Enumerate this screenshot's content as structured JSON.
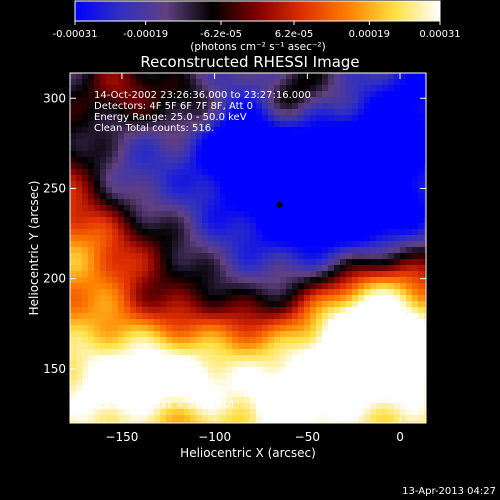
{
  "colorbar": {
    "tick_labels": [
      "-0.00031",
      "-0.00019",
      "-6.2e-05",
      "6.2e-05",
      "0.00019",
      "0.00031"
    ],
    "tick_values": [
      -0.00031,
      -0.00019,
      -6.2e-05,
      6.2e-05,
      0.00019,
      0.00031
    ],
    "range": [
      -0.00031,
      0.00031
    ],
    "unit_label": "(photons cm⁻² s⁻¹ asec⁻²)",
    "colors": [
      "#0000ff",
      "#3030c0",
      "#604080",
      "#000000",
      "#800000",
      "#e03000",
      "#ff8000",
      "#ffe040",
      "#ffffff"
    ]
  },
  "chart_data": {
    "type": "heatmap",
    "title": "Reconstructed RHESSI Image",
    "xlabel": "Heliocentric X (arcsec)",
    "ylabel": "Heliocentric Y (arcsec)",
    "xlim": [
      -178,
      14
    ],
    "ylim": [
      120,
      314
    ],
    "x_ticks": [
      -150,
      -100,
      -50,
      0
    ],
    "y_ticks": [
      150,
      200,
      250,
      300
    ],
    "x_tick_labels": [
      "−150",
      "−100",
      "−50",
      "0"
    ],
    "y_tick_labels": [
      "150",
      "200",
      "250",
      "300"
    ],
    "annotations": [
      "14-Oct-2002 23:26:36.000 to 23:27:16.000",
      "Detectors: 4F 5F 6F 7F 8F, Att 0",
      "Energy Range: 25.0 - 50.0 keV",
      "Clean     Total counts: 516."
    ],
    "peak_label": "Position of Peak = [-61,140]",
    "peak": [
      -61,
      140
    ],
    "marker": [
      -65,
      241
    ]
  },
  "footer": {
    "timestamp": "13-Apr-2013 04:27"
  }
}
